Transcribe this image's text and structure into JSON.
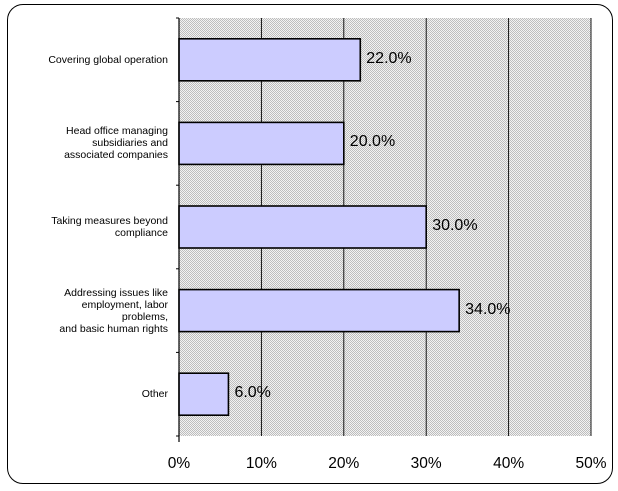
{
  "chart_data": {
    "type": "bar",
    "orientation": "horizontal",
    "categories": [
      "Covering global operation",
      "Head office managing\nsubsidiaries and\nassociated companies",
      "Taking measures beyond\ncompliance",
      "Addressing issues like\nemployment, labor\nproblems,\nand basic human rights",
      "Other"
    ],
    "values": [
      22.0,
      20.0,
      30.0,
      34.0,
      6.0
    ],
    "value_labels": [
      "22.0%",
      "20.0%",
      "30.0%",
      "34.0%",
      "6.0%"
    ],
    "xlim": [
      0,
      50
    ],
    "x_ticks": [
      "0%",
      "10%",
      "20%",
      "30%",
      "40%",
      "50%"
    ],
    "title": "",
    "xlabel": "",
    "ylabel": "",
    "grid": true,
    "bar_color": "#ccccff",
    "plot_background": "patterned gray"
  }
}
